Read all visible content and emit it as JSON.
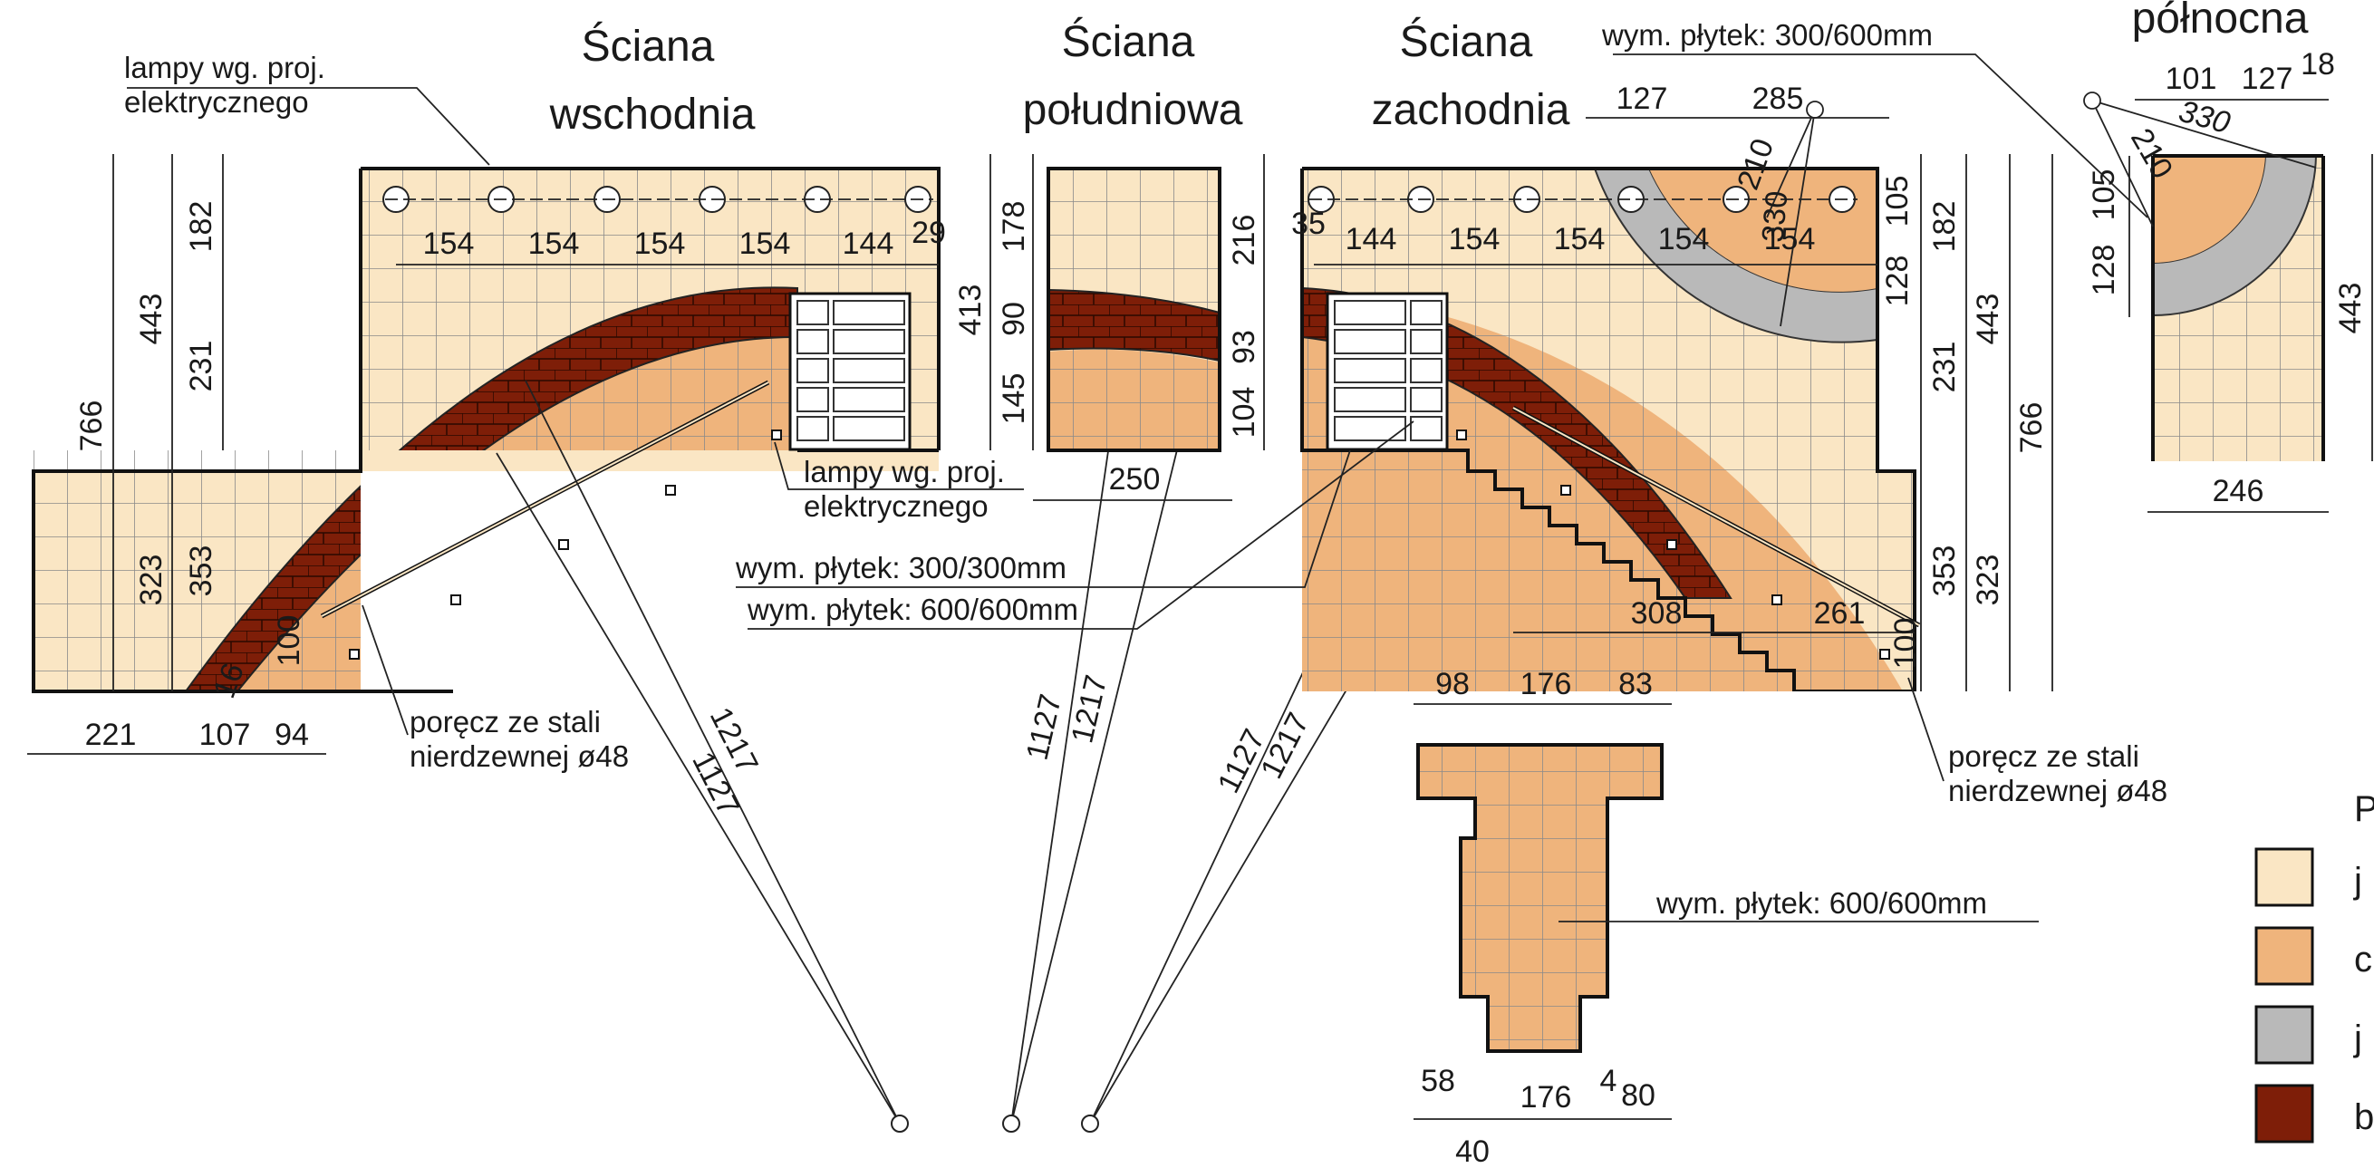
{
  "colors": {
    "background": "#ffffff",
    "light_beige": "#fae6c4",
    "peach": "#efb47c",
    "grey": "#b9b9b9",
    "brown": "#7e1e08",
    "outline": "#111111"
  },
  "walls": {
    "east": {
      "title_line1": "Ściana",
      "title_line2": "wschodnia"
    },
    "south": {
      "title_line1": "Ściana",
      "title_line2": "południowa"
    },
    "west": {
      "title_line1": "Ściana",
      "title_line2": "zachodnia"
    },
    "north": {
      "title_line1": "północna"
    }
  },
  "notes": {
    "lamps_top": [
      "lampy wg. proj.",
      "elektrycznego"
    ],
    "lamps_mid": [
      "lampy wg. proj.",
      "elektrycznego"
    ],
    "tile_300_300": "wym. płytek: 300/300mm",
    "tile_600_600": "wym. płytek: 600/600mm",
    "tile_300_600": "wym. płytek: 300/600mm",
    "tile_floor": "wym. płytek: 600/600mm",
    "railing_left": [
      "poręcz ze stali",
      "nierdzewnej ø48"
    ],
    "railing_right": [
      "poręcz ze stali",
      "nierdzewnej ø48"
    ]
  },
  "dims": {
    "east_lamp_spacing": [
      "154",
      "154",
      "154",
      "154",
      "144",
      "29"
    ],
    "east_left_vertical": [
      "766",
      "443",
      "182",
      "231",
      "323",
      "353",
      "100"
    ],
    "east_bottom": [
      "221",
      "107",
      "94",
      "16"
    ],
    "radii": [
      "1217",
      "1127",
      "1127",
      "1217",
      "1127",
      "1217"
    ],
    "south_left": [
      "413",
      "178",
      "90",
      "145"
    ],
    "south_right": [
      "216",
      "93",
      "104"
    ],
    "south_bottom": "250",
    "west_lamp_spacing": [
      "35",
      "144",
      "154",
      "154",
      "154",
      "154"
    ],
    "west_top": [
      "127",
      "285"
    ],
    "west_arc": [
      "210",
      "330"
    ],
    "west_right_vertical": [
      "105",
      "182",
      "128",
      "231",
      "443",
      "766",
      "353",
      "323",
      "100"
    ],
    "west_bottom": [
      "308",
      "261"
    ],
    "north_top": [
      "101",
      "127",
      "18"
    ],
    "north_arc": [
      "330",
      "210"
    ],
    "north_left": [
      "105",
      "128"
    ],
    "north_right": "443",
    "north_bottom": "246",
    "floor_top": [
      "98",
      "176",
      "83"
    ],
    "floor_bottom": [
      "58",
      "176",
      "4",
      "80",
      "40"
    ]
  },
  "legend": {
    "title_partial": "P",
    "items": [
      {
        "color": "#fae6c4",
        "label_partial": "j"
      },
      {
        "color": "#efb47c",
        "label_partial": "c"
      },
      {
        "color": "#b9b9b9",
        "label_partial": "j"
      },
      {
        "color": "#7e1e08",
        "label_partial": "b"
      }
    ]
  }
}
